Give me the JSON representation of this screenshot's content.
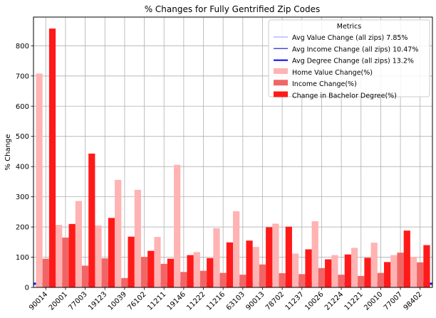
{
  "chart_data": {
    "type": "bar",
    "title": "% Changes for Fully Gentrified Zip Codes",
    "xlabel": "",
    "ylabel": "% Change",
    "ylim": [
      0,
      895
    ],
    "yticks": [
      0,
      100,
      200,
      300,
      400,
      500,
      600,
      700,
      800
    ],
    "grid": true,
    "categories": [
      "90014",
      "20001",
      "77003",
      "19123",
      "10039",
      "76102",
      "11211",
      "19146",
      "11222",
      "11216",
      "63103",
      "90013",
      "78702",
      "11237",
      "10026",
      "21224",
      "11221",
      "20010",
      "77007",
      "98402"
    ],
    "series": [
      {
        "name": "Home Value Change(%)",
        "color": "#ffb3b3",
        "values": [
          708,
          207,
          286,
          205,
          356,
          323,
          167,
          406,
          117,
          196,
          252,
          134,
          211,
          112,
          219,
          107,
          131,
          148,
          107,
          101
        ]
      },
      {
        "name": "Income Change(%)",
        "color": "#f06666",
        "values": [
          95,
          165,
          72,
          96,
          31,
          101,
          78,
          51,
          55,
          48,
          42,
          76,
          47,
          44,
          64,
          42,
          38,
          48,
          115,
          83
        ]
      },
      {
        "name": "Change in Bachelor Degree(%)",
        "color": "#ff1a1a",
        "values": [
          857,
          210,
          443,
          230,
          168,
          121,
          95,
          107,
          97,
          149,
          155,
          199,
          201,
          126,
          93,
          109,
          98,
          84,
          188,
          140
        ]
      }
    ],
    "reference_lines": [
      {
        "name": "Avg Value Change (all zips) 7.85%",
        "value": 7.85,
        "color": "#a6a6ff",
        "width": 1.2
      },
      {
        "name": "Avg Income Change (all zips) 10.47%",
        "value": 10.47,
        "color": "#4d4dd9",
        "width": 1.5
      },
      {
        "name": "Avg Degree Change (all zips) 13.2%",
        "value": 13.2,
        "color": "#0000ff",
        "width": 2
      }
    ],
    "legend": {
      "title": "Metrics",
      "placement": "top-right"
    }
  }
}
